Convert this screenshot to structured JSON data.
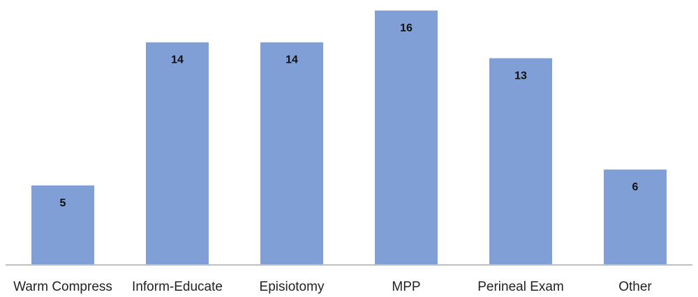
{
  "chart_data": {
    "type": "bar",
    "categories": [
      "Warm Compress",
      "Inform-Educate",
      "Episiotomy",
      "MPP",
      "Perineal Exam",
      "Other"
    ],
    "values": [
      5,
      14,
      14,
      16,
      13,
      6
    ],
    "title": "",
    "xlabel": "",
    "ylabel": "",
    "ylim": [
      0,
      16.4
    ],
    "grid": false,
    "legend": "none",
    "data_labels": "inside-top",
    "colors": {
      "bar": "#7f9fd6",
      "axis": "#bfbfbf",
      "label": "#111111",
      "tick_text": "#222222"
    }
  }
}
